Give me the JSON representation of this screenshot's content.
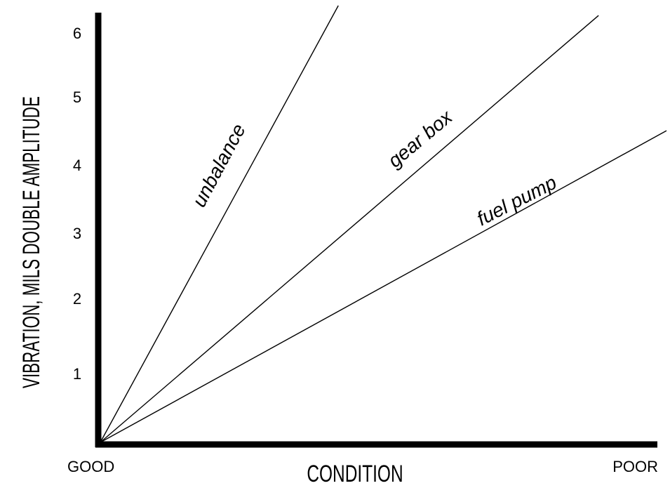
{
  "chart_data": {
    "type": "line",
    "title": "",
    "xlabel": "CONDITION",
    "ylabel": "VIBRATION, MILS  DOUBLE AMPLITUDE",
    "x_tick_labels": [
      "GOOD",
      "POOR"
    ],
    "y_ticks": [
      "1",
      "2",
      "3",
      "4",
      "5",
      "6"
    ],
    "ylim": [
      0,
      6.3
    ],
    "grid": false,
    "legend": "none",
    "series": [
      {
        "name": "unbalance",
        "start": [
          0,
          0
        ],
        "end": [
          0.45,
          6.9
        ]
      },
      {
        "name": "gear box",
        "start": [
          0,
          0
        ],
        "end": [
          0.88,
          6.3
        ]
      },
      {
        "name": "fuel pump",
        "start": [
          0,
          0
        ],
        "end": [
          1.0,
          4.6
        ]
      }
    ],
    "colors": {
      "line": "#000000",
      "axis": "#000000",
      "background": "#ffffff"
    }
  }
}
